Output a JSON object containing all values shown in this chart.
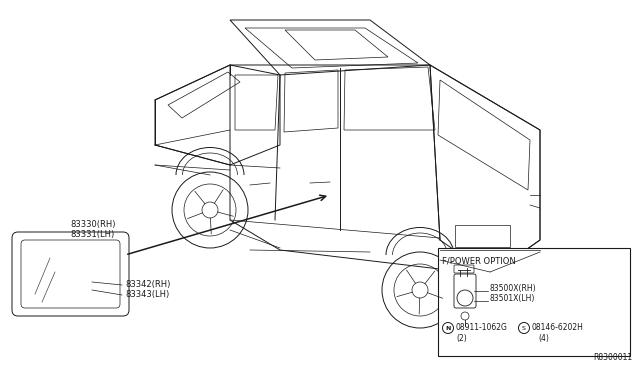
{
  "bg_color": "#ffffff",
  "fig_width": 6.4,
  "fig_height": 3.72,
  "dpi": 100,
  "diagram_ref": "R8300011",
  "label_83330": "83330(RH)",
  "label_83331": "83331(LH)",
  "label_83342": "83342(RH)",
  "label_83343": "83343(LH)",
  "box_title": "F/POWER OPTION",
  "box_part1": "83500X(RH)",
  "box_part2": "83501X(LH)",
  "box_nut_label": "08911-1062G",
  "box_nut_qty": "(2)",
  "box_bolt_label": "08146-6202H",
  "box_bolt_qty": "(4)"
}
